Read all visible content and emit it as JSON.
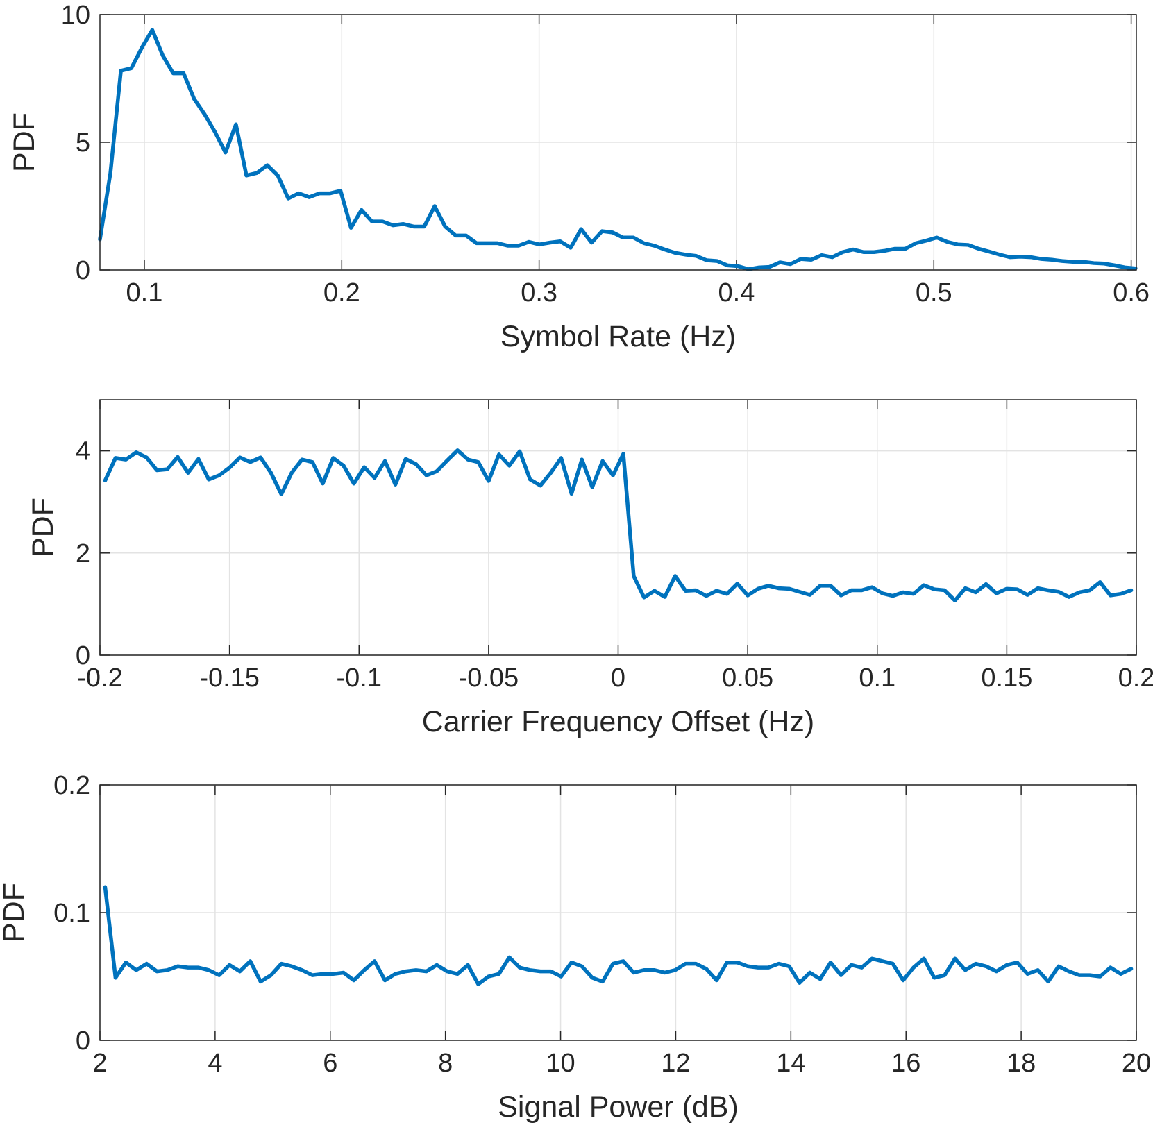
{
  "chart_data": [
    {
      "type": "line",
      "xlabel": "Symbol Rate (Hz)",
      "ylabel": "PDF",
      "color": "#0072bd",
      "grid": true,
      "xlim": [
        0.0775,
        0.6026
      ],
      "ylim": [
        0,
        10
      ],
      "xticks": [
        0.1,
        0.2,
        0.3,
        0.4,
        0.5,
        0.6
      ],
      "yticks": [
        0,
        5,
        10
      ],
      "x": [
        0.0775,
        0.0828,
        0.0881,
        0.0934,
        0.0987,
        0.104,
        0.1093,
        0.1146,
        0.1199,
        0.1252,
        0.1305,
        0.1358,
        0.1411,
        0.1464,
        0.1517,
        0.157,
        0.1623,
        0.1676,
        0.1729,
        0.1782,
        0.1835,
        0.1888,
        0.1941,
        0.1994,
        0.2047,
        0.21,
        0.2153,
        0.2206,
        0.2259,
        0.2312,
        0.2365,
        0.2418,
        0.2471,
        0.2524,
        0.2577,
        0.263,
        0.2683,
        0.2736,
        0.2789,
        0.2842,
        0.2895,
        0.2948,
        0.3001,
        0.3054,
        0.3107,
        0.316,
        0.3213,
        0.3266,
        0.3319,
        0.3372,
        0.3425,
        0.3478,
        0.3531,
        0.3584,
        0.3637,
        0.369,
        0.3743,
        0.3796,
        0.3849,
        0.3902,
        0.3955,
        0.4008,
        0.4061,
        0.4114,
        0.4167,
        0.422,
        0.4273,
        0.4326,
        0.4379,
        0.4432,
        0.4485,
        0.4538,
        0.4591,
        0.4644,
        0.4697,
        0.475,
        0.4803,
        0.4856,
        0.4909,
        0.4962,
        0.5015,
        0.5068,
        0.5121,
        0.5174,
        0.5227,
        0.528,
        0.5333,
        0.5386,
        0.5439,
        0.5492,
        0.5545,
        0.5598,
        0.5651,
        0.5704,
        0.5757,
        0.581,
        0.5863,
        0.5916,
        0.5969,
        0.6022
      ],
      "values": [
        1.2,
        3.8,
        7.8,
        7.9,
        8.7,
        9.4,
        8.4,
        7.7,
        7.7,
        6.7,
        6.1,
        5.4,
        4.6,
        5.7,
        3.7,
        3.8,
        4.1,
        3.7,
        2.8,
        3.0,
        2.85,
        3.0,
        3.0,
        3.1,
        1.65,
        2.35,
        1.9,
        1.9,
        1.75,
        1.8,
        1.7,
        1.7,
        2.5,
        1.7,
        1.35,
        1.35,
        1.05,
        1.05,
        1.05,
        0.95,
        0.95,
        1.1,
        1.0,
        1.07,
        1.12,
        0.87,
        1.6,
        1.07,
        1.52,
        1.47,
        1.27,
        1.27,
        1.05,
        0.95,
        0.8,
        0.67,
        0.6,
        0.55,
        0.38,
        0.35,
        0.18,
        0.15,
        0.03,
        0.1,
        0.12,
        0.3,
        0.23,
        0.43,
        0.4,
        0.58,
        0.5,
        0.7,
        0.8,
        0.7,
        0.7,
        0.75,
        0.83,
        0.83,
        1.05,
        1.15,
        1.27,
        1.1,
        1.0,
        0.98,
        0.83,
        0.72,
        0.6,
        0.5,
        0.52,
        0.5,
        0.43,
        0.4,
        0.35,
        0.32,
        0.32,
        0.27,
        0.25,
        0.18,
        0.1,
        0.06
      ]
    },
    {
      "type": "line",
      "xlabel": "Carrier Frequency Offset (Hz)",
      "ylabel": "PDF",
      "color": "#0072bd",
      "grid": true,
      "xlim": [
        -0.2,
        0.2
      ],
      "ylim": [
        0,
        5
      ],
      "xticks": [
        -0.2,
        -0.15,
        -0.1,
        -0.05,
        0,
        0.05,
        0.1,
        0.15,
        0.2
      ],
      "yticks": [
        0,
        2,
        4
      ],
      "x": [
        -0.198,
        -0.194,
        -0.19,
        -0.186,
        -0.182,
        -0.178,
        -0.174,
        -0.17,
        -0.166,
        -0.162,
        -0.158,
        -0.154,
        -0.15,
        -0.146,
        -0.142,
        -0.138,
        -0.134,
        -0.13,
        -0.126,
        -0.122,
        -0.118,
        -0.114,
        -0.11,
        -0.106,
        -0.102,
        -0.098,
        -0.094,
        -0.09,
        -0.086,
        -0.082,
        -0.078,
        -0.074,
        -0.07,
        -0.066,
        -0.062,
        -0.058,
        -0.054,
        -0.05,
        -0.046,
        -0.042,
        -0.038,
        -0.034,
        -0.03,
        -0.026,
        -0.022,
        -0.018,
        -0.014,
        -0.01,
        -0.006,
        -0.002,
        0.002,
        0.006,
        0.01,
        0.014,
        0.018,
        0.022,
        0.026,
        0.03,
        0.034,
        0.038,
        0.042,
        0.046,
        0.05,
        0.054,
        0.058,
        0.062,
        0.066,
        0.07,
        0.074,
        0.078,
        0.082,
        0.086,
        0.09,
        0.094,
        0.098,
        0.102,
        0.106,
        0.11,
        0.114,
        0.118,
        0.122,
        0.126,
        0.13,
        0.134,
        0.138,
        0.142,
        0.146,
        0.15,
        0.154,
        0.158,
        0.162,
        0.166,
        0.17,
        0.174,
        0.178,
        0.182,
        0.186,
        0.19,
        0.194,
        0.198
      ],
      "values": [
        3.42,
        3.86,
        3.83,
        3.97,
        3.87,
        3.62,
        3.64,
        3.88,
        3.57,
        3.84,
        3.44,
        3.52,
        3.67,
        3.87,
        3.78,
        3.87,
        3.57,
        3.15,
        3.57,
        3.83,
        3.78,
        3.36,
        3.86,
        3.71,
        3.36,
        3.68,
        3.47,
        3.8,
        3.34,
        3.84,
        3.74,
        3.52,
        3.6,
        3.81,
        4.01,
        3.83,
        3.78,
        3.41,
        3.93,
        3.71,
        3.99,
        3.44,
        3.32,
        3.57,
        3.86,
        3.16,
        3.83,
        3.29,
        3.8,
        3.52,
        3.94,
        1.55,
        1.13,
        1.26,
        1.14,
        1.55,
        1.26,
        1.27,
        1.16,
        1.26,
        1.2,
        1.4,
        1.17,
        1.3,
        1.36,
        1.31,
        1.3,
        1.24,
        1.18,
        1.36,
        1.36,
        1.17,
        1.27,
        1.27,
        1.33,
        1.21,
        1.16,
        1.23,
        1.2,
        1.37,
        1.29,
        1.27,
        1.07,
        1.31,
        1.23,
        1.39,
        1.21,
        1.3,
        1.29,
        1.18,
        1.31,
        1.27,
        1.24,
        1.14,
        1.23,
        1.27,
        1.43,
        1.17,
        1.2,
        1.27
      ]
    },
    {
      "type": "line",
      "xlabel": "Signal Power (dB)",
      "ylabel": "PDF",
      "color": "#0072bd",
      "grid": true,
      "xlim": [
        2,
        20
      ],
      "ylim": [
        0,
        0.2
      ],
      "xticks": [
        2,
        4,
        6,
        8,
        10,
        12,
        14,
        16,
        18,
        20
      ],
      "yticks": [
        0,
        0.1,
        0.2
      ],
      "x": [
        2.09,
        2.27,
        2.45,
        2.63,
        2.81,
        2.99,
        3.17,
        3.35,
        3.53,
        3.71,
        3.89,
        4.07,
        4.25,
        4.43,
        4.61,
        4.79,
        4.97,
        5.15,
        5.33,
        5.51,
        5.69,
        5.87,
        6.05,
        6.23,
        6.41,
        6.59,
        6.77,
        6.95,
        7.13,
        7.31,
        7.49,
        7.67,
        7.85,
        8.03,
        8.21,
        8.39,
        8.57,
        8.75,
        8.93,
        9.11,
        9.29,
        9.47,
        9.65,
        9.83,
        10.01,
        10.19,
        10.37,
        10.55,
        10.73,
        10.91,
        11.09,
        11.27,
        11.45,
        11.63,
        11.81,
        11.99,
        12.17,
        12.35,
        12.53,
        12.71,
        12.89,
        13.07,
        13.25,
        13.43,
        13.61,
        13.79,
        13.97,
        14.15,
        14.33,
        14.51,
        14.69,
        14.87,
        15.05,
        15.23,
        15.41,
        15.59,
        15.77,
        15.95,
        16.13,
        16.31,
        16.49,
        16.67,
        16.85,
        17.03,
        17.21,
        17.39,
        17.57,
        17.75,
        17.93,
        18.11,
        18.29,
        18.47,
        18.65,
        18.83,
        19.01,
        19.19,
        19.37,
        19.55,
        19.73,
        19.91
      ],
      "values": [
        0.12,
        0.049,
        0.061,
        0.055,
        0.06,
        0.054,
        0.055,
        0.058,
        0.057,
        0.057,
        0.055,
        0.051,
        0.059,
        0.054,
        0.062,
        0.046,
        0.051,
        0.06,
        0.058,
        0.055,
        0.051,
        0.052,
        0.052,
        0.053,
        0.047,
        0.055,
        0.062,
        0.047,
        0.052,
        0.054,
        0.055,
        0.054,
        0.059,
        0.054,
        0.052,
        0.059,
        0.044,
        0.05,
        0.052,
        0.065,
        0.057,
        0.055,
        0.054,
        0.054,
        0.05,
        0.061,
        0.058,
        0.049,
        0.046,
        0.06,
        0.062,
        0.053,
        0.055,
        0.055,
        0.053,
        0.055,
        0.06,
        0.06,
        0.056,
        0.047,
        0.061,
        0.061,
        0.058,
        0.057,
        0.057,
        0.06,
        0.058,
        0.045,
        0.053,
        0.048,
        0.061,
        0.051,
        0.059,
        0.057,
        0.064,
        0.062,
        0.06,
        0.047,
        0.057,
        0.064,
        0.049,
        0.051,
        0.064,
        0.055,
        0.06,
        0.058,
        0.054,
        0.059,
        0.061,
        0.052,
        0.055,
        0.046,
        0.058,
        0.054,
        0.051,
        0.051,
        0.05,
        0.057,
        0.052,
        0.056
      ]
    }
  ]
}
